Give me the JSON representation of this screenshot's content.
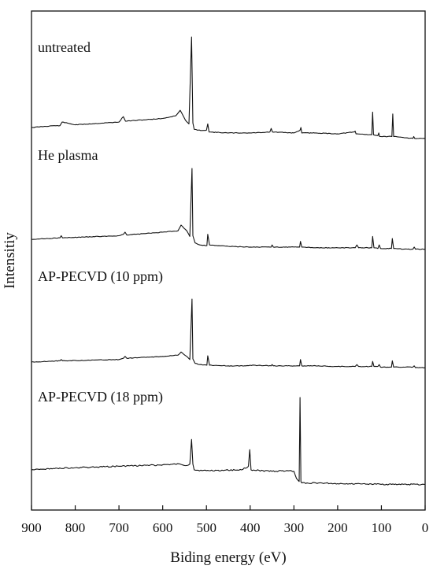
{
  "chart_data": {
    "type": "line",
    "xlabel": "Biding energy (eV)",
    "ylabel": "Intensitiy",
    "xlim": [
      900,
      0
    ],
    "x_reversed": true,
    "xticks": [
      900,
      800,
      700,
      600,
      500,
      400,
      300,
      200,
      100,
      0
    ],
    "xtick_labels": [
      "900",
      "800",
      "700",
      "600",
      "500",
      "400",
      "300",
      "200",
      "100",
      "0"
    ],
    "yticks_shown": false,
    "grid": false,
    "legend": "none",
    "line_color": "#111111",
    "series": [
      {
        "name": "untreated",
        "x": [
          900,
          850,
          835,
          830,
          800,
          700,
          690,
          685,
          600,
          570,
          560,
          548,
          540,
          534,
          531,
          528,
          520,
          500,
          497,
          494,
          450,
          410,
          400,
          355,
          352,
          349,
          300,
          286,
          284,
          282,
          250,
          200,
          162,
          160,
          158,
          122,
          120,
          118,
          108,
          106,
          104,
          76,
          74,
          72,
          50,
          28,
          26,
          24,
          0
        ],
        "y": [
          0.0,
          0.02,
          0.02,
          0.06,
          0.03,
          0.06,
          0.12,
          0.07,
          0.1,
          0.13,
          0.19,
          0.08,
          0.04,
          1.0,
          0.05,
          -0.02,
          -0.03,
          -0.03,
          0.04,
          -0.05,
          -0.06,
          -0.06,
          -0.06,
          -0.05,
          -0.01,
          -0.05,
          -0.06,
          -0.03,
          0.0,
          -0.06,
          -0.06,
          -0.07,
          -0.05,
          -0.04,
          -0.07,
          -0.08,
          0.17,
          -0.08,
          -0.09,
          -0.06,
          -0.1,
          -0.1,
          0.15,
          -0.1,
          -0.11,
          -0.12,
          -0.1,
          -0.12,
          -0.12
        ]
      },
      {
        "name": "He plasma",
        "x": [
          900,
          835,
          832,
          829,
          700,
          690,
          686,
          682,
          600,
          565,
          558,
          545,
          538,
          533,
          531,
          526,
          515,
          499,
          497,
          493,
          450,
          400,
          352,
          350,
          347,
          300,
          287,
          285,
          282,
          250,
          200,
          160,
          156,
          152,
          122,
          120,
          117,
          108,
          105,
          102,
          77,
          75,
          72,
          50,
          28,
          25,
          22,
          0
        ],
        "y": [
          0.0,
          0.02,
          0.05,
          0.02,
          0.05,
          0.07,
          0.1,
          0.06,
          0.1,
          0.12,
          0.2,
          0.12,
          0.04,
          1.0,
          0.05,
          -0.05,
          -0.08,
          -0.09,
          0.07,
          -0.08,
          -0.1,
          -0.11,
          -0.11,
          -0.08,
          -0.11,
          -0.11,
          -0.11,
          -0.03,
          -0.11,
          -0.12,
          -0.12,
          -0.12,
          -0.08,
          -0.12,
          -0.12,
          0.04,
          -0.12,
          -0.13,
          -0.08,
          -0.13,
          -0.13,
          0.01,
          -0.13,
          -0.14,
          -0.14,
          -0.11,
          -0.14,
          -0.14
        ]
      },
      {
        "name": "AP-PECVD (10 ppm)",
        "x": [
          900,
          835,
          832,
          829,
          700,
          690,
          686,
          682,
          600,
          565,
          558,
          545,
          538,
          533,
          531,
          526,
          515,
          499,
          497,
          493,
          450,
          410,
          400,
          352,
          350,
          347,
          300,
          287,
          285,
          282,
          250,
          200,
          160,
          156,
          152,
          122,
          120,
          117,
          108,
          105,
          102,
          77,
          75,
          72,
          50,
          28,
          25,
          22,
          0
        ],
        "y": [
          0.0,
          0.02,
          0.04,
          0.02,
          0.04,
          0.06,
          0.09,
          0.06,
          0.09,
          0.11,
          0.16,
          0.09,
          0.04,
          1.0,
          0.05,
          -0.02,
          -0.04,
          -0.05,
          0.1,
          -0.05,
          -0.06,
          -0.06,
          -0.05,
          -0.06,
          -0.04,
          -0.06,
          -0.06,
          -0.06,
          0.04,
          -0.06,
          -0.06,
          -0.07,
          -0.07,
          -0.04,
          -0.07,
          -0.07,
          0.01,
          -0.07,
          -0.07,
          -0.04,
          -0.08,
          -0.08,
          0.02,
          -0.08,
          -0.08,
          -0.08,
          -0.06,
          -0.09,
          -0.09
        ]
      },
      {
        "name": "AP-PECVD (18 ppm)",
        "x": [
          900,
          850,
          800,
          750,
          700,
          650,
          600,
          560,
          545,
          538,
          534,
          531,
          528,
          510,
          500,
          420,
          404,
          401,
          398,
          350,
          310,
          300,
          294,
          288,
          286,
          284,
          282,
          270,
          250,
          200,
          150,
          100,
          50,
          0
        ],
        "y": [
          0.0,
          0.02,
          0.03,
          0.04,
          0.05,
          0.06,
          0.07,
          0.08,
          0.06,
          0.08,
          0.42,
          0.08,
          0.0,
          -0.01,
          -0.01,
          0.0,
          0.05,
          0.28,
          0.0,
          -0.02,
          -0.01,
          -0.02,
          -0.12,
          -0.16,
          1.0,
          -0.16,
          -0.18,
          -0.18,
          -0.18,
          -0.19,
          -0.19,
          -0.2,
          -0.2,
          -0.2
        ]
      }
    ]
  }
}
